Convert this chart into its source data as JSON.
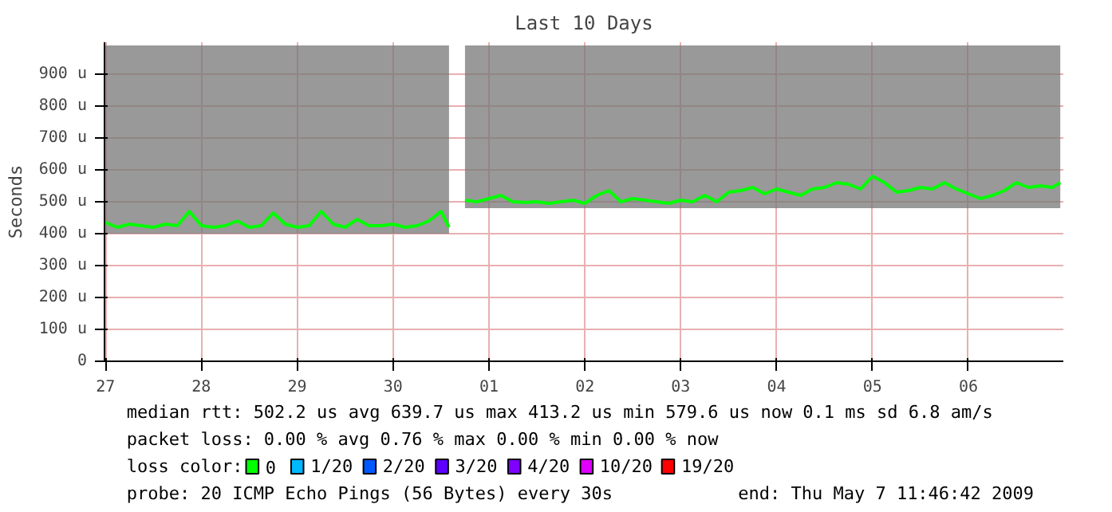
{
  "chart_data": {
    "type": "line",
    "title": "Last 10 Days",
    "ylabel": "Seconds",
    "legend_title": "loss color:",
    "x": [
      "2009-04-27T12:00",
      "2009-04-27T15:00",
      "2009-04-27T18:00",
      "2009-04-27T21:00",
      "2009-04-28T00:00",
      "2009-04-28T03:00",
      "2009-04-28T06:00",
      "2009-04-28T09:00",
      "2009-04-28T12:00",
      "2009-04-28T15:00",
      "2009-04-28T18:00",
      "2009-04-28T21:00",
      "2009-04-29T00:00",
      "2009-04-29T03:00",
      "2009-04-29T06:00",
      "2009-04-29T09:00",
      "2009-04-29T12:00",
      "2009-04-29T15:00",
      "2009-04-29T18:00",
      "2009-04-29T21:00",
      "2009-04-30T00:00",
      "2009-04-30T03:00",
      "2009-04-30T06:00",
      "2009-04-30T09:00",
      "2009-04-30T12:00",
      "2009-04-30T15:00",
      "2009-04-30T18:00",
      "2009-04-30T21:00",
      "2009-05-01T00:00",
      "2009-05-01T02:00",
      "2009-05-01T04:00",
      "2009-05-01T06:00",
      "2009-05-01T09:00",
      "2009-05-01T12:00",
      "2009-05-01T15:00",
      "2009-05-01T18:00",
      "2009-05-01T21:00",
      "2009-05-02T00:00",
      "2009-05-02T03:00",
      "2009-05-02T06:00",
      "2009-05-02T09:00",
      "2009-05-02T12:00",
      "2009-05-02T15:00",
      "2009-05-02T18:00",
      "2009-05-02T21:00",
      "2009-05-03T00:00",
      "2009-05-03T03:00",
      "2009-05-03T06:00",
      "2009-05-03T09:00",
      "2009-05-03T12:00",
      "2009-05-03T15:00",
      "2009-05-03T18:00",
      "2009-05-03T21:00",
      "2009-05-04T00:00",
      "2009-05-04T03:00",
      "2009-05-04T06:00",
      "2009-05-04T09:00",
      "2009-05-04T12:00",
      "2009-05-04T15:00",
      "2009-05-04T18:00",
      "2009-05-04T21:00",
      "2009-05-05T00:00",
      "2009-05-05T03:00",
      "2009-05-05T06:00",
      "2009-05-05T09:00",
      "2009-05-05T12:00",
      "2009-05-05T15:00",
      "2009-05-05T18:00",
      "2009-05-05T21:00",
      "2009-05-06T00:00",
      "2009-05-06T03:00",
      "2009-05-06T06:00",
      "2009-05-06T09:00",
      "2009-05-06T12:00",
      "2009-05-06T15:00",
      "2009-05-06T18:00",
      "2009-05-06T21:00",
      "2009-05-07T00:00",
      "2009-05-07T03:00",
      "2009-05-07T06:00",
      "2009-05-07T09:00",
      "2009-05-07T11:00"
    ],
    "series": [
      {
        "name": "0",
        "color": "#00ff00",
        "values": [
          435,
          420,
          430,
          425,
          420,
          430,
          425,
          470,
          425,
          420,
          425,
          440,
          420,
          425,
          465,
          430,
          420,
          425,
          470,
          430,
          420,
          445,
          425,
          425,
          430,
          420,
          425,
          440,
          470,
          420,
          null,
          505,
          500,
          510,
          520,
          500,
          498,
          500,
          495,
          500,
          505,
          495,
          520,
          535,
          500,
          510,
          505,
          500,
          495,
          505,
          500,
          520,
          500,
          530,
          535,
          545,
          525,
          540,
          530,
          520,
          540,
          545,
          560,
          555,
          540,
          580,
          560,
          530,
          535,
          545,
          540,
          560,
          540,
          525,
          510,
          520,
          535,
          560,
          545,
          550,
          545,
          560
        ],
        "lower": [
          400,
          400,
          400,
          400,
          400,
          400,
          400,
          400,
          400,
          400,
          400,
          400,
          400,
          400,
          400,
          400,
          400,
          400,
          400,
          400,
          400,
          400,
          400,
          400,
          400,
          400,
          400,
          400,
          400,
          400,
          null,
          480,
          480,
          480,
          480,
          480,
          480,
          480,
          480,
          480,
          480,
          480,
          480,
          480,
          480,
          480,
          480,
          480,
          480,
          480,
          480,
          480,
          480,
          480,
          480,
          480,
          480,
          480,
          480,
          480,
          480,
          480,
          480,
          480,
          480,
          480,
          480,
          480,
          480,
          480,
          480,
          480,
          480,
          480,
          480,
          480,
          480,
          480,
          480,
          480,
          480,
          480
        ],
        "upper": [
          990,
          990,
          990,
          990,
          990,
          990,
          990,
          990,
          990,
          990,
          990,
          990,
          990,
          990,
          990,
          990,
          990,
          990,
          990,
          990,
          990,
          990,
          990,
          990,
          990,
          990,
          990,
          990,
          990,
          990,
          null,
          990,
          990,
          990,
          990,
          990,
          990,
          990,
          990,
          990,
          990,
          990,
          990,
          990,
          990,
          990,
          990,
          990,
          990,
          990,
          990,
          990,
          990,
          990,
          990,
          990,
          990,
          990,
          990,
          990,
          990,
          990,
          990,
          990,
          990,
          990,
          990,
          990,
          990,
          990,
          990,
          990,
          990,
          990,
          990,
          990,
          990,
          990,
          990,
          990,
          990,
          990
        ]
      },
      {
        "name": "1/20",
        "color": "#00b8ff",
        "values": [
          null,
          null,
          null,
          null,
          null,
          null,
          null,
          null,
          null,
          null,
          null,
          null,
          null,
          null,
          null,
          null,
          null,
          null,
          null,
          null,
          null,
          null,
          null,
          null,
          null,
          null,
          null,
          null,
          null,
          null,
          null,
          null,
          null,
          null,
          null,
          null,
          null,
          null,
          null,
          null,
          null,
          null,
          null,
          null,
          null,
          null,
          null,
          null,
          null,
          null,
          null,
          null,
          null,
          null,
          null,
          null,
          null,
          null,
          null,
          null,
          null,
          null,
          null,
          null,
          null,
          null,
          null,
          null,
          null,
          null,
          null,
          null,
          null,
          null,
          null,
          null,
          null,
          null,
          null,
          null,
          null,
          null
        ]
      },
      {
        "name": "2/20",
        "color": "#0059ff",
        "values": [
          null,
          null,
          null,
          null,
          null,
          null,
          null,
          null,
          null,
          null,
          null,
          null,
          null,
          null,
          null,
          null,
          null,
          null,
          null,
          null,
          null,
          null,
          null,
          null,
          null,
          null,
          null,
          null,
          null,
          null,
          null,
          null,
          null,
          null,
          null,
          null,
          null,
          null,
          null,
          null,
          null,
          null,
          null,
          null,
          null,
          null,
          null,
          null,
          null,
          null,
          null,
          null,
          null,
          null,
          null,
          null,
          null,
          null,
          null,
          null,
          null,
          null,
          null,
          null,
          null,
          null,
          null,
          null,
          null,
          null,
          null,
          null,
          null,
          null,
          null,
          null,
          null,
          null,
          null,
          null,
          null,
          null
        ]
      },
      {
        "name": "3/20",
        "color": "#5e00ff",
        "values": [
          null,
          null,
          null,
          null,
          null,
          null,
          null,
          null,
          null,
          null,
          null,
          null,
          null,
          null,
          null,
          null,
          null,
          null,
          null,
          null,
          null,
          null,
          null,
          null,
          null,
          null,
          null,
          null,
          null,
          null,
          null,
          null,
          null,
          null,
          null,
          null,
          null,
          null,
          null,
          null,
          null,
          null,
          null,
          null,
          null,
          null,
          null,
          null,
          null,
          null,
          null,
          null,
          null,
          null,
          null,
          null,
          null,
          null,
          null,
          null,
          null,
          null,
          null,
          null,
          null,
          null,
          null,
          null,
          null,
          null,
          null,
          null,
          null,
          null,
          null,
          null,
          null,
          null,
          null,
          null,
          null,
          null
        ]
      },
      {
        "name": "4/20",
        "color": "#7e00ff",
        "values": [
          null,
          null,
          null,
          null,
          null,
          null,
          null,
          null,
          null,
          null,
          null,
          null,
          null,
          null,
          null,
          null,
          null,
          null,
          null,
          null,
          null,
          null,
          null,
          null,
          null,
          null,
          null,
          null,
          null,
          null,
          null,
          null,
          null,
          null,
          null,
          null,
          null,
          null,
          null,
          null,
          null,
          null,
          null,
          null,
          null,
          null,
          null,
          null,
          null,
          null,
          null,
          null,
          null,
          null,
          null,
          null,
          null,
          null,
          null,
          null,
          null,
          null,
          null,
          null,
          null,
          null,
          null,
          null,
          null,
          null,
          null,
          null,
          null,
          null,
          null,
          null,
          null,
          null,
          null,
          null,
          null,
          null
        ]
      },
      {
        "name": "10/20",
        "color": "#dd00ff",
        "values": [
          null,
          null,
          null,
          null,
          null,
          null,
          null,
          null,
          null,
          null,
          null,
          null,
          null,
          null,
          null,
          null,
          null,
          null,
          null,
          null,
          null,
          null,
          null,
          null,
          null,
          null,
          null,
          null,
          null,
          null,
          null,
          null,
          null,
          null,
          null,
          null,
          null,
          null,
          null,
          null,
          null,
          null,
          null,
          null,
          null,
          null,
          null,
          null,
          null,
          null,
          null,
          null,
          null,
          null,
          null,
          null,
          null,
          null,
          null,
          null,
          null,
          null,
          null,
          null,
          null,
          null,
          null,
          null,
          null,
          null,
          null,
          null,
          null,
          null,
          null,
          null,
          null,
          null,
          null,
          null,
          null,
          null
        ]
      },
      {
        "name": "19/20",
        "color": "#ff0000",
        "values": [
          null,
          null,
          null,
          null,
          null,
          null,
          null,
          null,
          null,
          null,
          null,
          null,
          null,
          null,
          null,
          null,
          null,
          null,
          null,
          null,
          null,
          null,
          null,
          null,
          null,
          null,
          null,
          null,
          null,
          null,
          null,
          null,
          null,
          null,
          null,
          null,
          null,
          null,
          null,
          null,
          null,
          null,
          null,
          null,
          null,
          null,
          null,
          null,
          null,
          null,
          null,
          null,
          null,
          null,
          null,
          null,
          null,
          null,
          null,
          null,
          null,
          null,
          null,
          null,
          null,
          null,
          null,
          null,
          null,
          null,
          null,
          null,
          null,
          null,
          null,
          null,
          null,
          null,
          null,
          null,
          null,
          null
        ]
      }
    ],
    "xlim": [
      "2009-04-27T11:46",
      "2009-05-07T11:46"
    ],
    "xticks": [
      {
        "value": "2009-04-27T12:00",
        "label": "27"
      },
      {
        "value": "2009-04-28T12:00",
        "label": "28"
      },
      {
        "value": "2009-04-29T12:00",
        "label": "29"
      },
      {
        "value": "2009-04-30T12:00",
        "label": "30"
      },
      {
        "value": "2009-05-01T12:00",
        "label": "01"
      },
      {
        "value": "2009-05-02T12:00",
        "label": "02"
      },
      {
        "value": "2009-05-03T12:00",
        "label": "03"
      },
      {
        "value": "2009-05-04T12:00",
        "label": "04"
      },
      {
        "value": "2009-05-05T12:00",
        "label": "05"
      },
      {
        "value": "2009-05-06T12:00",
        "label": "06"
      }
    ],
    "ylim": [
      0,
      1000
    ],
    "yticks": [
      0,
      {
        "value": 100,
        "label": "100 u"
      },
      {
        "value": 200,
        "label": "200 u"
      },
      {
        "value": 300,
        "label": "300 u"
      },
      {
        "value": 400,
        "label": "400 u"
      },
      {
        "value": 500,
        "label": "500 u"
      },
      {
        "value": 600,
        "label": "600 u"
      },
      {
        "value": 700,
        "label": "700 u"
      },
      {
        "value": 800,
        "label": "800 u"
      },
      {
        "value": 900,
        "label": "900 u"
      }
    ],
    "grid": true,
    "legend": "bottom",
    "annotations": [
      "median rtt:  502.2 us avg  639.7 us max  413.2 us min  579.6 us now  0.1 ms sd  6.8  am/s",
      "packet loss:  0.00 % avg  0.76 % max  0.00 % min  0.00 % now",
      "probe:       20 ICMP Echo Pings (56 Bytes) every 30s",
      "end: Thu May  7 11:46:42 2009"
    ]
  }
}
